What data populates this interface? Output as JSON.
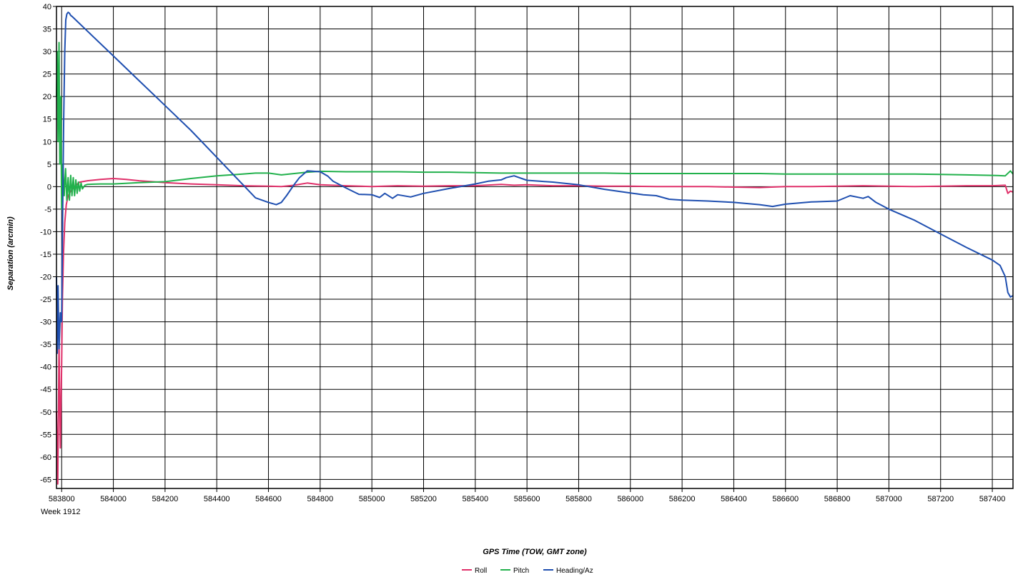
{
  "chart_data": {
    "type": "line",
    "title": "",
    "xlabel": "GPS Time (TOW, GMT zone)",
    "ylabel": "Separation (arcmin)",
    "x_sub_label": "Week 1912",
    "xlim": [
      583780,
      587480
    ],
    "ylim": [
      -67,
      40
    ],
    "x_ticks": [
      583800,
      584000,
      584200,
      584400,
      584600,
      584800,
      585000,
      585200,
      585400,
      585600,
      585800,
      586000,
      586200,
      586400,
      586600,
      586800,
      587000,
      587200,
      587400
    ],
    "y_ticks": [
      40,
      35,
      30,
      25,
      20,
      15,
      10,
      5,
      0,
      -5,
      -10,
      -15,
      -20,
      -25,
      -30,
      -35,
      -40,
      -45,
      -50,
      -55,
      -60,
      -65
    ],
    "grid": true,
    "legend_position": "bottom-center",
    "series": [
      {
        "name": "Roll",
        "color": "#e0306a",
        "x": [
          583780,
          583785,
          583790,
          583795,
          583800,
          583803,
          583807,
          583812,
          583818,
          583825,
          583835,
          583850,
          583870,
          583900,
          583950,
          584000,
          584050,
          584100,
          584150,
          584200,
          584300,
          584400,
          584500,
          584600,
          584650,
          584700,
          584750,
          584800,
          584900,
          585000,
          585100,
          585200,
          585300,
          585400,
          585500,
          585550,
          585600,
          585700,
          585800,
          585900,
          586000,
          586100,
          586200,
          586300,
          586400,
          586500,
          586600,
          586700,
          586800,
          586900,
          587000,
          587100,
          587200,
          587300,
          587400,
          587450,
          587460,
          587470,
          587480
        ],
        "y": [
          -50,
          -66,
          -35,
          -58,
          -40,
          -25,
          -15,
          -8,
          -4,
          -2,
          -1,
          0,
          1,
          1.3,
          1.6,
          1.8,
          1.6,
          1.3,
          1.1,
          0.9,
          0.6,
          0.4,
          0.2,
          0.1,
          0.0,
          0.3,
          0.8,
          0.4,
          0.2,
          0.0,
          0.2,
          0.1,
          0.2,
          0.2,
          0.5,
          0.3,
          0.4,
          0.2,
          0.2,
          0.1,
          0.1,
          0.0,
          0.0,
          0.0,
          -0.1,
          -0.2,
          0.0,
          0.0,
          0.1,
          0.2,
          0.1,
          0.0,
          0.1,
          0.2,
          0.2,
          0.3,
          -1.5,
          -1.0,
          -1.2
        ]
      },
      {
        "name": "Pitch",
        "color": "#22b14c",
        "x": [
          583780,
          583783,
          583786,
          583790,
          583793,
          583797,
          583800,
          583805,
          583810,
          583815,
          583820,
          583825,
          583830,
          583835,
          583840,
          583845,
          583850,
          583855,
          583860,
          583865,
          583870,
          583875,
          583880,
          583890,
          583900,
          583950,
          584000,
          584100,
          584200,
          584300,
          584400,
          584500,
          584550,
          584600,
          584650,
          584700,
          584750,
          584800,
          584900,
          585000,
          585100,
          585200,
          585300,
          585400,
          585500,
          585600,
          585700,
          585800,
          585900,
          586000,
          586100,
          586200,
          586300,
          586400,
          586500,
          586600,
          586700,
          586800,
          586900,
          587000,
          587100,
          587200,
          587300,
          587400,
          587450,
          587470,
          587480
        ],
        "y": [
          20,
          30,
          10,
          32,
          5,
          20,
          -5,
          5,
          -2,
          4,
          -3,
          2,
          -3,
          2.5,
          -2,
          2,
          -2,
          1.5,
          -1.5,
          1,
          -1,
          0.8,
          -0.5,
          0.3,
          0.5,
          0.6,
          0.6,
          0.9,
          1.1,
          1.8,
          2.4,
          2.8,
          3.0,
          3.0,
          2.6,
          2.9,
          3.2,
          3.4,
          3.3,
          3.3,
          3.3,
          3.2,
          3.2,
          3.1,
          3.0,
          3.0,
          3.0,
          3.0,
          3.0,
          2.9,
          2.9,
          2.9,
          2.9,
          2.9,
          2.9,
          2.8,
          2.8,
          2.8,
          2.8,
          2.8,
          2.8,
          2.7,
          2.6,
          2.5,
          2.4,
          3.5,
          2.8
        ]
      },
      {
        "name": "Heading/Az",
        "color": "#1f4fb0",
        "x": [
          583780,
          583783,
          583786,
          583790,
          583795,
          583800,
          583804,
          583808,
          583812,
          583816,
          583820,
          583825,
          583830,
          583835,
          583840,
          583900,
          584000,
          584100,
          584200,
          584300,
          584400,
          584500,
          584550,
          584600,
          584630,
          584650,
          584670,
          584700,
          584720,
          584750,
          584800,
          584830,
          584850,
          584900,
          584950,
          585000,
          585030,
          585050,
          585080,
          585100,
          585150,
          585200,
          585300,
          585400,
          585450,
          585500,
          585520,
          585550,
          585580,
          585600,
          585650,
          585700,
          585800,
          585900,
          586000,
          586050,
          586100,
          586150,
          586200,
          586300,
          586400,
          586500,
          586550,
          586600,
          586700,
          586800,
          586850,
          586900,
          586920,
          586950,
          587000,
          587100,
          587200,
          587300,
          587400,
          587430,
          587450,
          587460,
          587470,
          587480
        ],
        "y": [
          -20,
          -37,
          -22,
          -36,
          -28,
          -30,
          -5,
          15,
          30,
          37,
          38.3,
          38.7,
          38.5,
          38,
          37.8,
          34.5,
          29,
          23.5,
          18,
          12.5,
          6.5,
          0.5,
          -2.5,
          -3.5,
          -4,
          -3.5,
          -2,
          0.5,
          2,
          3.5,
          3.3,
          2.3,
          1.2,
          -0.3,
          -1.7,
          -1.8,
          -2.4,
          -1.5,
          -2.6,
          -1.8,
          -2.3,
          -1.5,
          -0.4,
          0.6,
          1.2,
          1.5,
          2,
          2.4,
          1.8,
          1.4,
          1.2,
          1.0,
          0.4,
          -0.6,
          -1.4,
          -1.8,
          -2.0,
          -2.8,
          -3.0,
          -3.2,
          -3.5,
          -4.0,
          -4.4,
          -3.9,
          -3.4,
          -3.2,
          -2.0,
          -2.6,
          -2.2,
          -3.5,
          -5.0,
          -7.5,
          -10.5,
          -13.5,
          -16.3,
          -17.5,
          -20,
          -23.5,
          -24.5,
          -24.2
        ]
      }
    ]
  }
}
